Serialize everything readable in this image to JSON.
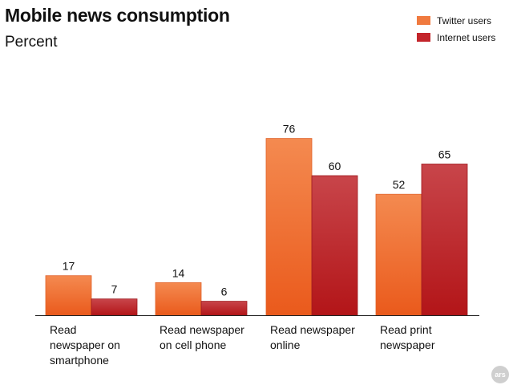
{
  "chart_data": {
    "type": "bar",
    "title": "Mobile news consumption",
    "subtitle": "Percent",
    "categories": [
      "Read newspaper on smartphone",
      "Read newspaper on cell phone",
      "Read newspaper online",
      "Read print newspaper"
    ],
    "category_lines": [
      [
        "Read",
        "newspaper on",
        "smartphone"
      ],
      [
        "Read newspaper",
        "on cell phone"
      ],
      [
        "Read newspaper",
        "online"
      ],
      [
        "Read print",
        "newspaper"
      ]
    ],
    "series": [
      {
        "name": "Twitter users",
        "values": [
          17,
          14,
          76,
          52
        ],
        "color": "#f07a3f"
      },
      {
        "name": "Internet users",
        "values": [
          7,
          6,
          60,
          65
        ],
        "color": "#c3252b"
      }
    ],
    "ylim": [
      0,
      100
    ],
    "grid": false,
    "legend_position": "top-right",
    "xlabel": "",
    "ylabel": ""
  },
  "logo": {
    "text": "ars"
  }
}
